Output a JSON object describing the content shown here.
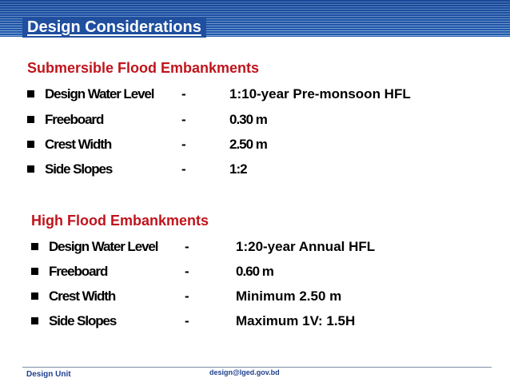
{
  "header": {
    "title": "Design Considerations"
  },
  "sections": [
    {
      "heading": "Submersible Flood Embankments",
      "items": [
        {
          "label": "Design Water Level",
          "sep": "-",
          "value": "1:10-year Pre-monsoon HFL"
        },
        {
          "label": "Freeboard",
          "sep": "-",
          "value": "0.30 m"
        },
        {
          "label": "Crest Width",
          "sep": "-",
          "value": "2.50 m"
        },
        {
          "label": "Side Slopes",
          "sep": "-",
          "value": "1:2"
        }
      ]
    },
    {
      "heading": "High Flood Embankments",
      "items": [
        {
          "label": "Design Water Level",
          "sep": "-",
          "value": "1:20-year Annual HFL"
        },
        {
          "label": "Freeboard",
          "sep": "-",
          "value": "0.60 m"
        },
        {
          "label": "Crest Width",
          "sep": "-",
          "value": "Minimum 2.50 m"
        },
        {
          "label": "Side Slopes",
          "sep": "-",
          "value": "Maximum 1V: 1.5H"
        }
      ]
    }
  ],
  "footer": {
    "unit": "Design Unit",
    "email": "design@lged.gov.bd"
  },
  "colors": {
    "title_bg": "#1f4f9e",
    "heading": "#c0141c",
    "footer_text": "#1f3f8f"
  }
}
